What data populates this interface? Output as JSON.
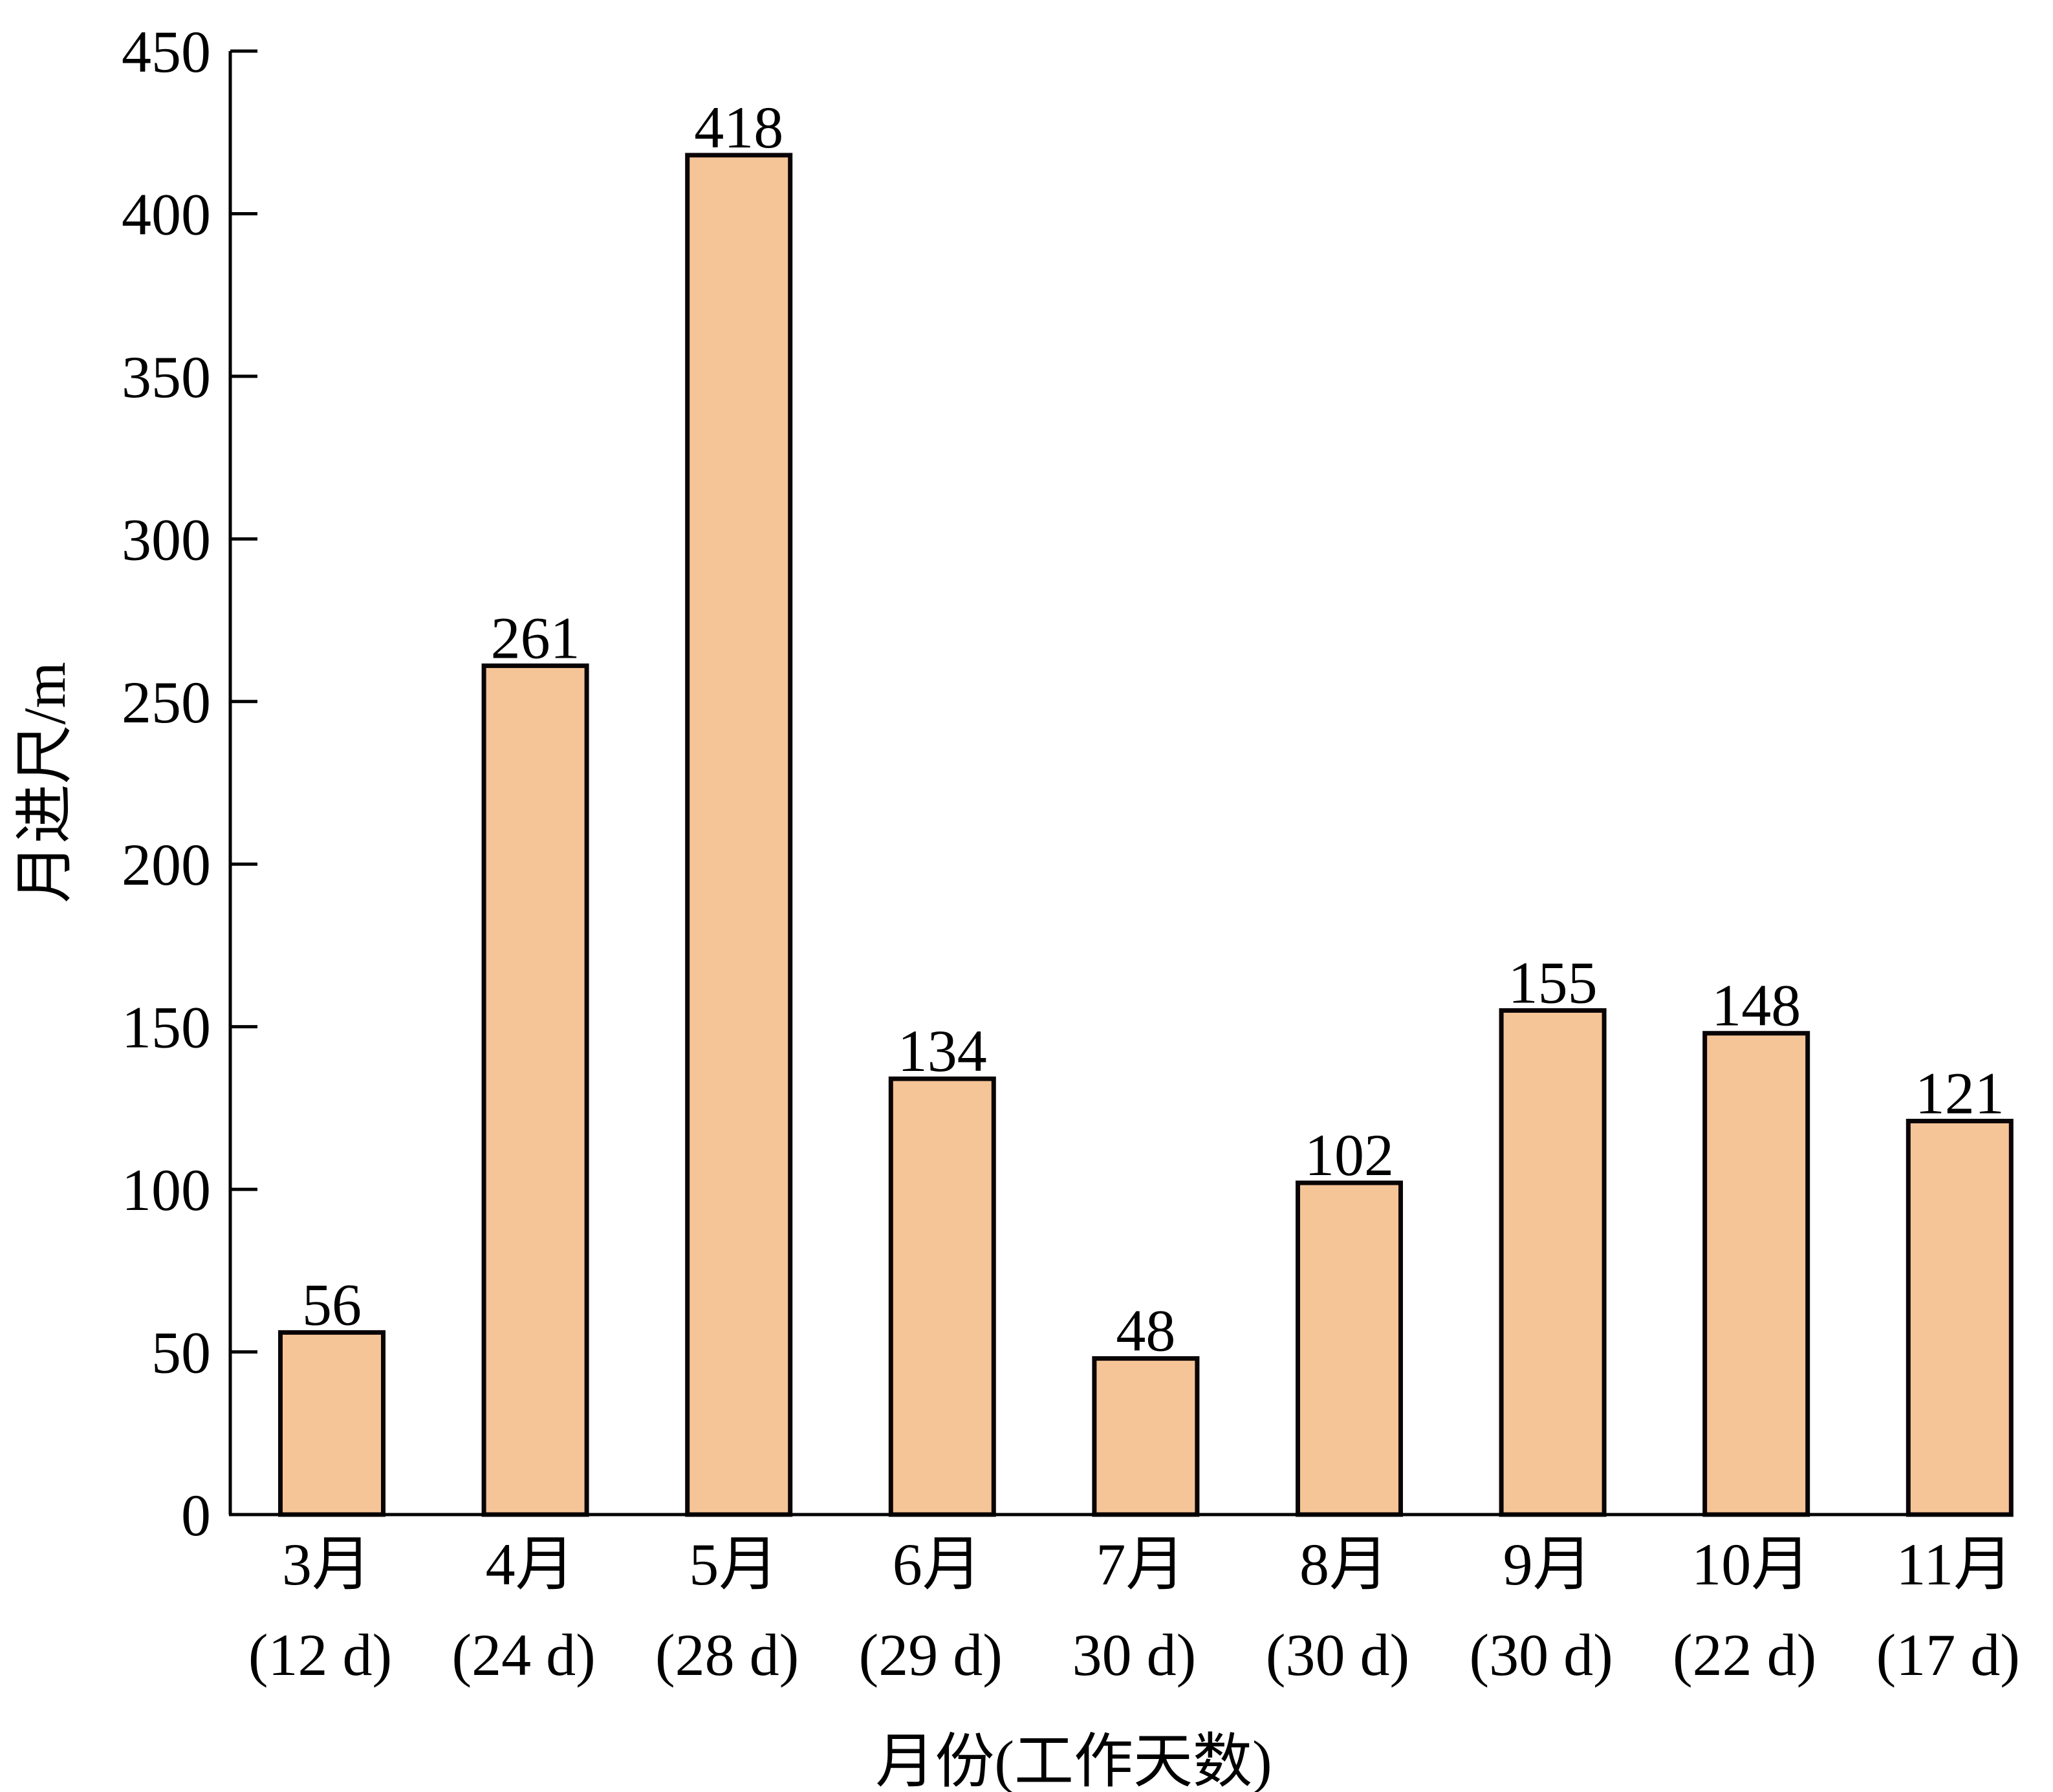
{
  "chart_data": {
    "type": "bar",
    "title": "",
    "xlabel": "月份(工作天数)",
    "ylabel": "月进尺/m",
    "ylim": [
      0,
      450
    ],
    "yticks": [
      0,
      50,
      100,
      150,
      200,
      250,
      300,
      350,
      400,
      450
    ],
    "grid": false,
    "categories": [
      {
        "month": "3月",
        "days": "(12 d)"
      },
      {
        "month": "4月",
        "days": "(24 d)"
      },
      {
        "month": "5月",
        "days": "(28 d)"
      },
      {
        "month": "6月",
        "days": "(29 d)"
      },
      {
        "month": "7月",
        "days": "30 d)"
      },
      {
        "month": "8月",
        "days": "(30 d)"
      },
      {
        "month": "9月",
        "days": "(30 d)"
      },
      {
        "month": "10月",
        "days": "(22 d)"
      },
      {
        "month": "11月",
        "days": "(17 d)"
      }
    ],
    "values": [
      56,
      261,
      418,
      134,
      48,
      102,
      155,
      148,
      121
    ],
    "bar_color": "#F5C497",
    "edge_color": "#0A0406"
  }
}
